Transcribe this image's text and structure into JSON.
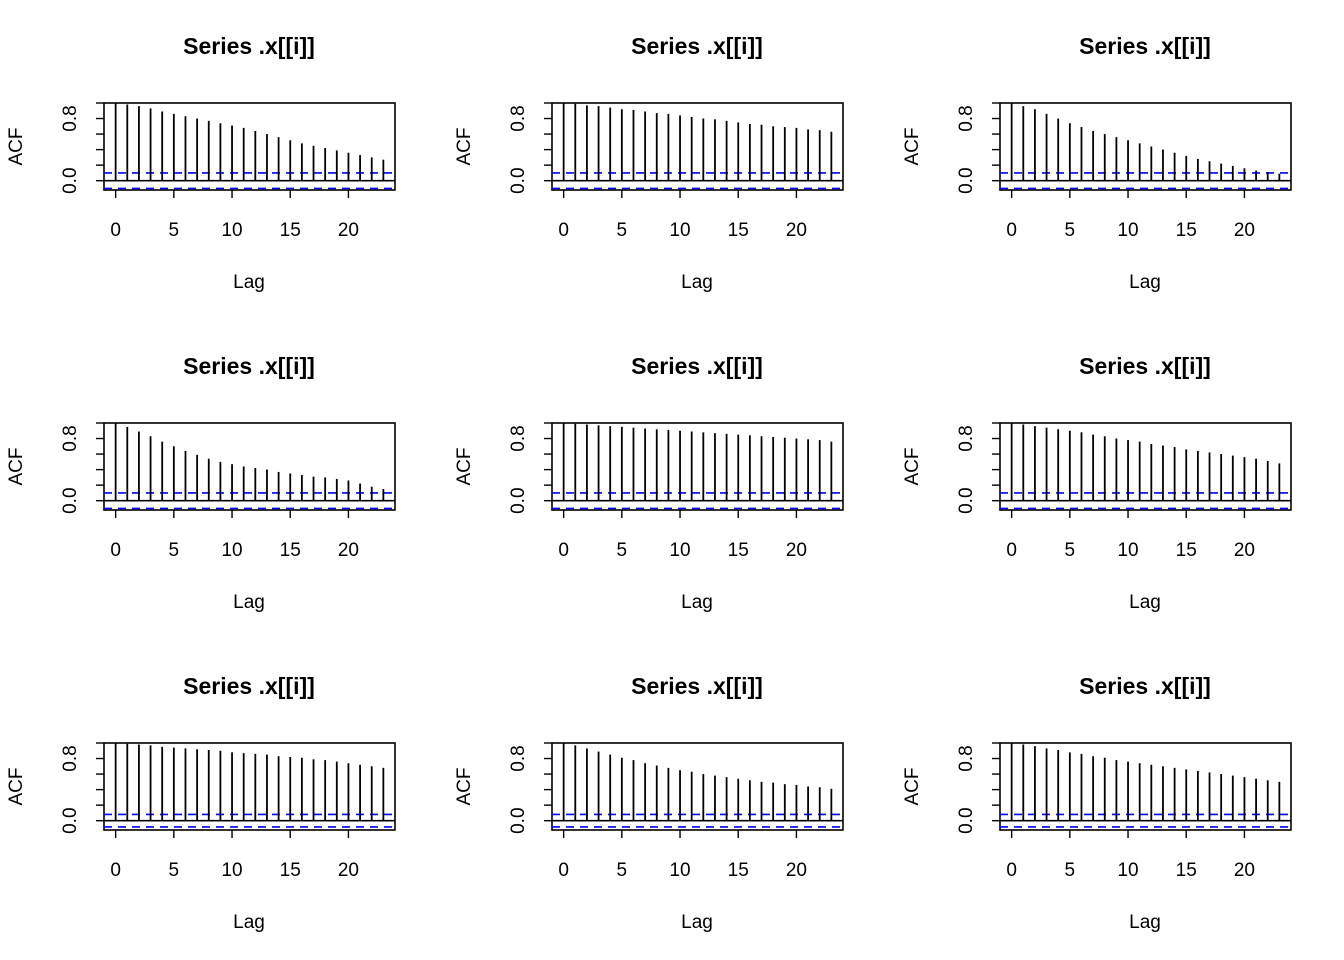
{
  "colors": {
    "bars": "#000000",
    "ci_line": "#0000ff",
    "axis": "#000000"
  },
  "chart_data": [
    {
      "type": "bar",
      "title": "Series  .x[[i]]",
      "xlabel": "Lag",
      "ylabel": "ACF",
      "x": [
        0,
        1,
        2,
        3,
        4,
        5,
        6,
        7,
        8,
        9,
        10,
        11,
        12,
        13,
        14,
        15,
        16,
        17,
        18,
        19,
        20,
        21,
        22,
        23
      ],
      "values": [
        1.0,
        0.98,
        0.96,
        0.93,
        0.89,
        0.86,
        0.83,
        0.8,
        0.77,
        0.74,
        0.71,
        0.68,
        0.64,
        0.6,
        0.56,
        0.52,
        0.48,
        0.45,
        0.42,
        0.39,
        0.36,
        0.33,
        0.3,
        0.27
      ],
      "ci": 0.1,
      "xlim": [
        -1,
        24
      ],
      "ylim": [
        -0.12,
        1.0
      ],
      "xticks": [
        0,
        5,
        10,
        15,
        20
      ],
      "yticks": [
        "0.0",
        "0.8"
      ]
    },
    {
      "type": "bar",
      "title": "Series  .x[[i]]",
      "xlabel": "Lag",
      "ylabel": "ACF",
      "x": [
        0,
        1,
        2,
        3,
        4,
        5,
        6,
        7,
        8,
        9,
        10,
        11,
        12,
        13,
        14,
        15,
        16,
        17,
        18,
        19,
        20,
        21,
        22,
        23
      ],
      "values": [
        1.0,
        0.99,
        0.97,
        0.96,
        0.94,
        0.92,
        0.91,
        0.89,
        0.87,
        0.86,
        0.84,
        0.82,
        0.8,
        0.79,
        0.77,
        0.75,
        0.73,
        0.72,
        0.7,
        0.69,
        0.68,
        0.66,
        0.65,
        0.63
      ],
      "ci": 0.1,
      "xlim": [
        -1,
        24
      ],
      "ylim": [
        -0.12,
        1.0
      ],
      "xticks": [
        0,
        5,
        10,
        15,
        20
      ],
      "yticks": [
        "0.0",
        "0.8"
      ]
    },
    {
      "type": "bar",
      "title": "Series  .x[[i]]",
      "xlabel": "Lag",
      "ylabel": "ACF",
      "x": [
        0,
        1,
        2,
        3,
        4,
        5,
        6,
        7,
        8,
        9,
        10,
        11,
        12,
        13,
        14,
        15,
        16,
        17,
        18,
        19,
        20,
        21,
        22,
        23
      ],
      "values": [
        1.0,
        0.96,
        0.92,
        0.86,
        0.8,
        0.74,
        0.69,
        0.64,
        0.6,
        0.56,
        0.52,
        0.48,
        0.44,
        0.4,
        0.36,
        0.32,
        0.28,
        0.25,
        0.22,
        0.19,
        0.16,
        0.13,
        0.11,
        0.09
      ],
      "ci": 0.1,
      "xlim": [
        -1,
        24
      ],
      "ylim": [
        -0.12,
        1.0
      ],
      "xticks": [
        0,
        5,
        10,
        15,
        20
      ],
      "yticks": [
        "0.0",
        "0.8"
      ]
    },
    {
      "type": "bar",
      "title": "Series  .x[[i]]",
      "xlabel": "Lag",
      "ylabel": "ACF",
      "x": [
        0,
        1,
        2,
        3,
        4,
        5,
        6,
        7,
        8,
        9,
        10,
        11,
        12,
        13,
        14,
        15,
        16,
        17,
        18,
        19,
        20,
        21,
        22,
        23
      ],
      "values": [
        1.0,
        0.95,
        0.89,
        0.83,
        0.76,
        0.7,
        0.64,
        0.59,
        0.54,
        0.5,
        0.47,
        0.44,
        0.42,
        0.4,
        0.37,
        0.35,
        0.33,
        0.31,
        0.3,
        0.28,
        0.26,
        0.22,
        0.18,
        0.15
      ],
      "ci": 0.1,
      "xlim": [
        -1,
        24
      ],
      "ylim": [
        -0.12,
        1.0
      ],
      "xticks": [
        0,
        5,
        10,
        15,
        20
      ],
      "yticks": [
        "0.0",
        "0.8"
      ]
    },
    {
      "type": "bar",
      "title": "Series  .x[[i]]",
      "xlabel": "Lag",
      "ylabel": "ACF",
      "x": [
        0,
        1,
        2,
        3,
        4,
        5,
        6,
        7,
        8,
        9,
        10,
        11,
        12,
        13,
        14,
        15,
        16,
        17,
        18,
        19,
        20,
        21,
        22,
        23
      ],
      "values": [
        1.0,
        0.99,
        0.98,
        0.97,
        0.96,
        0.95,
        0.94,
        0.93,
        0.92,
        0.91,
        0.9,
        0.89,
        0.88,
        0.87,
        0.86,
        0.85,
        0.84,
        0.83,
        0.82,
        0.81,
        0.8,
        0.79,
        0.78,
        0.76
      ],
      "ci": 0.1,
      "xlim": [
        -1,
        24
      ],
      "ylim": [
        -0.12,
        1.0
      ],
      "xticks": [
        0,
        5,
        10,
        15,
        20
      ],
      "yticks": [
        "0.0",
        "0.8"
      ]
    },
    {
      "type": "bar",
      "title": "Series  .x[[i]]",
      "xlabel": "Lag",
      "ylabel": "ACF",
      "x": [
        0,
        1,
        2,
        3,
        4,
        5,
        6,
        7,
        8,
        9,
        10,
        11,
        12,
        13,
        14,
        15,
        16,
        17,
        18,
        19,
        20,
        21,
        22,
        23
      ],
      "values": [
        1.0,
        0.98,
        0.96,
        0.94,
        0.92,
        0.9,
        0.88,
        0.85,
        0.83,
        0.8,
        0.78,
        0.76,
        0.73,
        0.71,
        0.69,
        0.66,
        0.64,
        0.62,
        0.6,
        0.58,
        0.56,
        0.54,
        0.51,
        0.48
      ],
      "ci": 0.1,
      "xlim": [
        -1,
        24
      ],
      "ylim": [
        -0.12,
        1.0
      ],
      "xticks": [
        0,
        5,
        10,
        15,
        20
      ],
      "yticks": [
        "0.0",
        "0.8"
      ]
    },
    {
      "type": "bar",
      "title": "Series  .x[[i]]",
      "xlabel": "Lag",
      "ylabel": "ACF",
      "x": [
        0,
        1,
        2,
        3,
        4,
        5,
        6,
        7,
        8,
        9,
        10,
        11,
        12,
        13,
        14,
        15,
        16,
        17,
        18,
        19,
        20,
        21,
        22,
        23
      ],
      "values": [
        1.0,
        0.99,
        0.98,
        0.97,
        0.95,
        0.94,
        0.93,
        0.92,
        0.91,
        0.9,
        0.88,
        0.87,
        0.86,
        0.85,
        0.83,
        0.82,
        0.81,
        0.79,
        0.78,
        0.76,
        0.74,
        0.72,
        0.7,
        0.68
      ],
      "ci": 0.08,
      "xlim": [
        -1,
        24
      ],
      "ylim": [
        -0.12,
        1.0
      ],
      "xticks": [
        0,
        5,
        10,
        15,
        20
      ],
      "yticks": [
        "0.0",
        "0.8"
      ]
    },
    {
      "type": "bar",
      "title": "Series  .x[[i]]",
      "xlabel": "Lag",
      "ylabel": "ACF",
      "x": [
        0,
        1,
        2,
        3,
        4,
        5,
        6,
        7,
        8,
        9,
        10,
        11,
        12,
        13,
        14,
        15,
        16,
        17,
        18,
        19,
        20,
        21,
        22,
        23
      ],
      "values": [
        1.0,
        0.97,
        0.93,
        0.89,
        0.85,
        0.81,
        0.78,
        0.74,
        0.71,
        0.68,
        0.65,
        0.63,
        0.6,
        0.58,
        0.56,
        0.54,
        0.52,
        0.5,
        0.49,
        0.47,
        0.46,
        0.44,
        0.43,
        0.41
      ],
      "ci": 0.08,
      "xlim": [
        -1,
        24
      ],
      "ylim": [
        -0.12,
        1.0
      ],
      "xticks": [
        0,
        5,
        10,
        15,
        20
      ],
      "yticks": [
        "0.0",
        "0.8"
      ]
    },
    {
      "type": "bar",
      "title": "Series  .x[[i]]",
      "xlabel": "Lag",
      "ylabel": "ACF",
      "x": [
        0,
        1,
        2,
        3,
        4,
        5,
        6,
        7,
        8,
        9,
        10,
        11,
        12,
        13,
        14,
        15,
        16,
        17,
        18,
        19,
        20,
        21,
        22,
        23
      ],
      "values": [
        1.0,
        0.98,
        0.96,
        0.93,
        0.91,
        0.88,
        0.86,
        0.83,
        0.81,
        0.78,
        0.76,
        0.74,
        0.72,
        0.7,
        0.68,
        0.66,
        0.64,
        0.62,
        0.6,
        0.58,
        0.56,
        0.54,
        0.52,
        0.5
      ],
      "ci": 0.08,
      "xlim": [
        -1,
        24
      ],
      "ylim": [
        -0.12,
        1.0
      ],
      "xticks": [
        0,
        5,
        10,
        15,
        20
      ],
      "yticks": [
        "0.0",
        "0.8"
      ]
    }
  ]
}
